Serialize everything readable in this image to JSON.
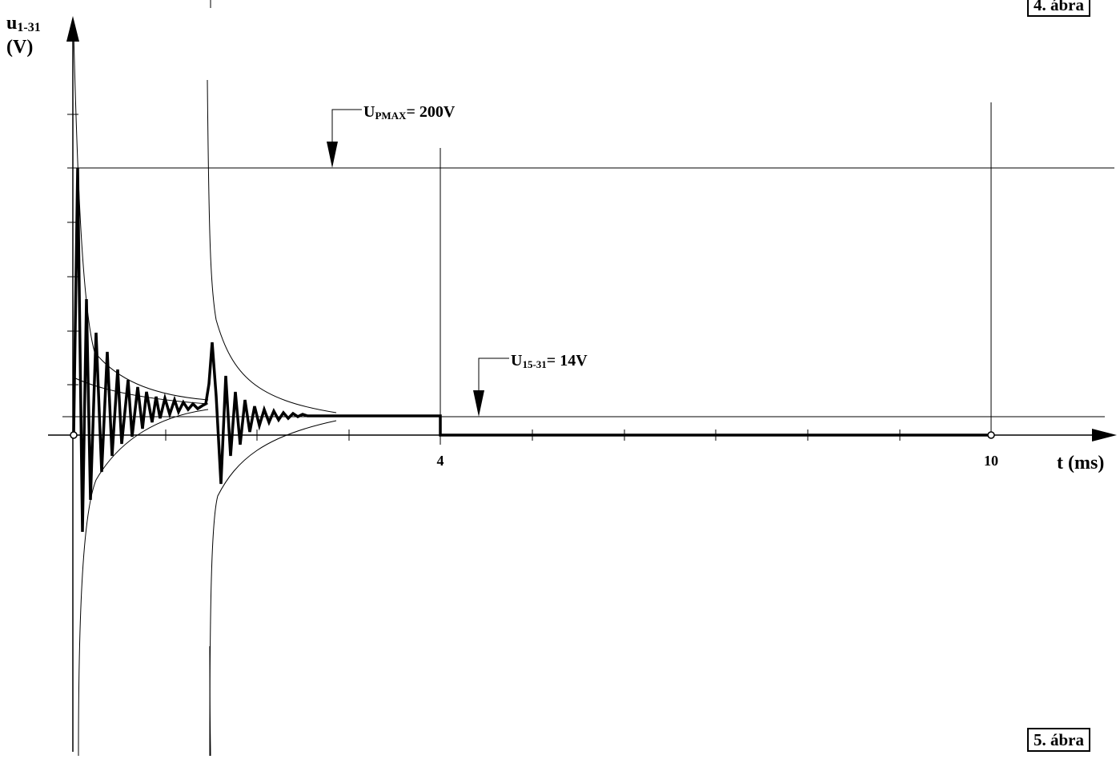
{
  "labels": {
    "y_axis_line1": "u",
    "y_axis_line1_sub": "1-31",
    "y_axis_line2": "(V)",
    "x_axis": "t (ms)",
    "tick_4": "4",
    "tick_10": "10",
    "upmax_main": "U",
    "upmax_sub": "PMAX",
    "upmax_value": "= 200V",
    "u1531_main": "U",
    "u1531_sub": "15-31",
    "u1531_value": "= 14V",
    "figure_top": "4. ábra",
    "figure_bottom": "5. ábra"
  }
}
